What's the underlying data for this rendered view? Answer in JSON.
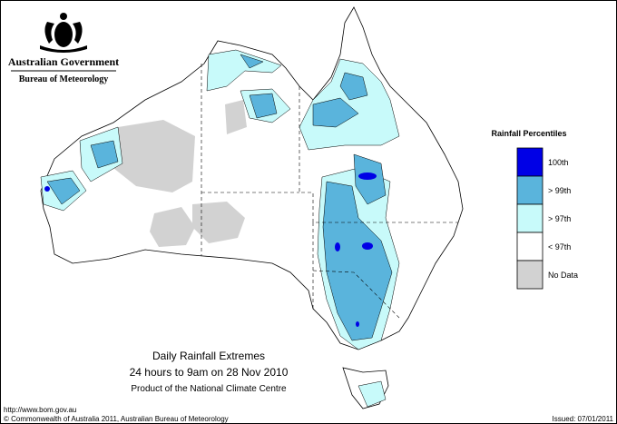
{
  "header": {
    "government": "Australian Government",
    "agency": "Bureau of Meteorology"
  },
  "legend": {
    "title": "Rainfall Percentiles",
    "items": [
      {
        "label": "100th",
        "color": "#0000e6"
      },
      {
        "label": "> 99th",
        "color": "#5ab4dc"
      },
      {
        "label": "> 97th",
        "color": "#c8fafa"
      },
      {
        "label": "< 97th",
        "color": "#ffffff"
      },
      {
        "label": "No Data",
        "color": "#d2d2d2"
      }
    ]
  },
  "caption": {
    "title": "Daily Rainfall Extremes",
    "period": "24 hours to 9am on 28 Nov 2010",
    "product": "Product of the National Climate Centre"
  },
  "footer": {
    "url": "http://www.bom.gov.au",
    "copyright": "© Commonwealth of Australia 2011, Australian Bureau of Meteorology",
    "issued": "Issued: 07/01/2011"
  }
}
